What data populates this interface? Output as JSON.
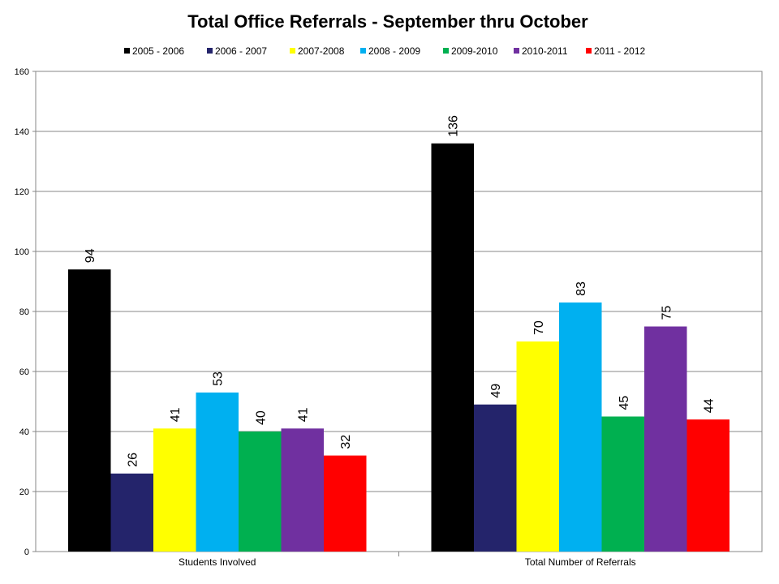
{
  "chart_data": {
    "type": "bar",
    "title": "Total Office Referrals  - September  thru October",
    "xlabel": "",
    "ylabel": "",
    "ylim": [
      0,
      160
    ],
    "yticks": [
      0,
      20,
      40,
      60,
      80,
      100,
      120,
      140,
      160
    ],
    "grid": true,
    "legend_position": "top",
    "categories": [
      "Students Involved",
      "Total Number of Referrals"
    ],
    "series": [
      {
        "name": "2005 - 2006",
        "color": "#000000",
        "values": [
          94,
          136
        ]
      },
      {
        "name": "2006 - 2007",
        "color": "#24246B",
        "values": [
          26,
          49
        ]
      },
      {
        "name": "2007-2008",
        "color": "#FFFF00",
        "values": [
          41,
          70
        ]
      },
      {
        "name": "2008 - 2009",
        "color": "#00B0F0",
        "values": [
          53,
          83
        ]
      },
      {
        "name": "2009-2010",
        "color": "#00B050",
        "values": [
          40,
          45
        ]
      },
      {
        "name": "2010-2011",
        "color": "#7030A0",
        "values": [
          41,
          75
        ]
      },
      {
        "name": "2011 - 2012",
        "color": "#FF0000",
        "values": [
          32,
          44
        ]
      }
    ]
  }
}
